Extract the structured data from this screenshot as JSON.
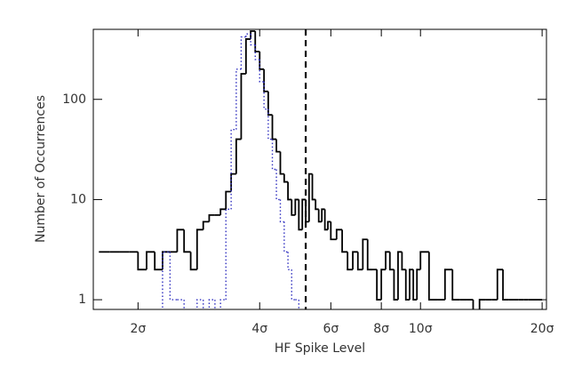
{
  "chart_data": {
    "type": "histogram",
    "xlabel": "HF Spike Level",
    "ylabel": "Number of Occurrences",
    "xscale": "log",
    "yscale": "log",
    "xlim": [
      1.55,
      20.5
    ],
    "ylim": [
      0.8,
      500
    ],
    "xticks": [
      {
        "value": 2,
        "label": "2σ"
      },
      {
        "value": 4,
        "label": "4σ"
      },
      {
        "value": 6,
        "label": "6σ"
      },
      {
        "value": 8,
        "label": "8σ"
      },
      {
        "value": 10,
        "label": "10σ"
      },
      {
        "value": 20,
        "label": "20σ"
      }
    ],
    "yticks": [
      1,
      10,
      100
    ],
    "vline": 5.2,
    "bins": [
      1.6,
      1.7,
      1.8,
      1.9,
      2.0,
      2.1,
      2.2,
      2.3,
      2.4,
      2.5,
      2.6,
      2.7,
      2.8,
      2.9,
      3.0,
      3.1,
      3.2,
      3.3,
      3.4,
      3.5,
      3.6,
      3.7,
      3.8,
      3.9,
      4.0,
      4.1,
      4.2,
      4.3,
      4.4,
      4.5,
      4.6,
      4.7,
      4.8,
      4.9,
      5.0,
      5.1,
      5.2,
      5.3,
      5.4,
      5.5,
      5.6,
      5.7,
      5.8,
      5.9,
      6.0,
      6.2,
      6.4,
      6.6,
      6.8,
      7.0,
      7.2,
      7.4,
      7.6,
      7.8,
      8.0,
      8.2,
      8.4,
      8.6,
      8.8,
      9.0,
      9.2,
      9.4,
      9.6,
      9.8,
      10.0,
      10.5,
      11.0,
      11.5,
      12.0,
      12.5,
      13.0,
      13.5,
      14.0,
      14.5,
      15.0,
      15.5,
      16.0,
      16.5,
      17.0,
      17.5,
      18.0,
      18.5,
      19.0,
      19.5,
      20.0
    ],
    "series": [
      {
        "color": "#000000",
        "style": "solid",
        "values": [
          3,
          3,
          3,
          3,
          2,
          3,
          2,
          3,
          3,
          5,
          3,
          2,
          5,
          6,
          7,
          7,
          8,
          12,
          18,
          40,
          180,
          400,
          480,
          300,
          200,
          120,
          70,
          40,
          30,
          18,
          15,
          10,
          7,
          10,
          5,
          10,
          6,
          18,
          10,
          8,
          6,
          8,
          5,
          6,
          4,
          5,
          3,
          2,
          3,
          2,
          4,
          2,
          2,
          1,
          2,
          3,
          2,
          1,
          3,
          2,
          1,
          2,
          1,
          2,
          3,
          1,
          1,
          2,
          1,
          1,
          1,
          0,
          1,
          1,
          1,
          2,
          1,
          1,
          1,
          1,
          1,
          1,
          1,
          1
        ]
      },
      {
        "color": "#3030c0",
        "style": "dotted",
        "values": [
          0,
          0,
          0,
          0,
          0,
          0,
          0,
          3,
          1,
          1,
          0,
          0,
          1,
          0,
          1,
          0,
          1,
          8,
          50,
          200,
          420,
          450,
          350,
          250,
          150,
          80,
          40,
          20,
          10,
          6,
          3,
          2,
          1,
          1,
          0,
          0,
          0,
          0,
          0,
          0,
          0,
          0,
          0,
          0,
          0,
          0,
          0,
          0,
          0,
          0,
          0,
          0,
          0,
          0,
          0,
          0,
          0,
          0,
          0,
          0,
          0,
          0,
          0,
          0,
          0,
          0,
          0,
          0,
          0,
          0,
          0,
          0,
          0,
          0,
          0,
          0,
          0,
          0,
          0,
          0,
          0,
          0,
          0,
          0
        ]
      }
    ]
  }
}
